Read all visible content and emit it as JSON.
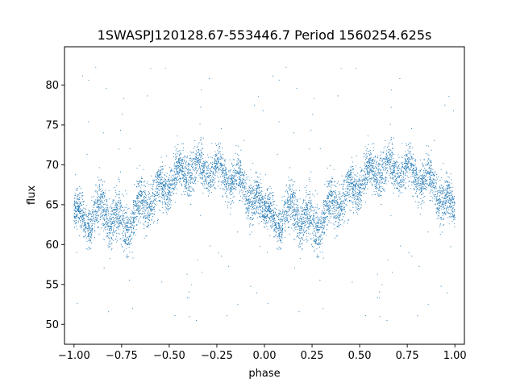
{
  "chart_data": {
    "type": "scatter",
    "title": "1SWASPJ120128.67-553446.7 Period 1560254.625s",
    "xlabel": "phase",
    "ylabel": "flux",
    "xlim": [
      -1.05,
      1.05
    ],
    "ylim": [
      47.5,
      84.8
    ],
    "xticks": [
      -1.0,
      -0.75,
      -0.5,
      -0.25,
      0.0,
      0.25,
      0.5,
      0.75,
      1.0
    ],
    "xtick_labels": [
      "−1.00",
      "−0.75",
      "−0.50",
      "−0.25",
      "0.00",
      "0.25",
      "0.50",
      "0.75",
      "1.00"
    ],
    "yticks": [
      50,
      55,
      60,
      65,
      70,
      75,
      80
    ],
    "ytick_labels": [
      "50",
      "55",
      "60",
      "65",
      "70",
      "75",
      "80"
    ],
    "grid": false,
    "marker_color": "#1f77b4",
    "series": [
      {
        "phase_profile": [
          {
            "x": 0.0,
            "y": 64.0,
            "spread": 2.0
          },
          {
            "x": 0.05,
            "y": 63.0,
            "spread": 2.2
          },
          {
            "x": 0.1,
            "y": 63.5,
            "spread": 2.5
          },
          {
            "x": 0.15,
            "y": 64.5,
            "spread": 2.8
          },
          {
            "x": 0.2,
            "y": 63.5,
            "spread": 3.0
          },
          {
            "x": 0.25,
            "y": 62.5,
            "spread": 3.0
          },
          {
            "x": 0.3,
            "y": 63.0,
            "spread": 3.0
          },
          {
            "x": 0.35,
            "y": 65.0,
            "spread": 2.8
          },
          {
            "x": 0.4,
            "y": 65.5,
            "spread": 2.5
          },
          {
            "x": 0.45,
            "y": 66.5,
            "spread": 2.5
          },
          {
            "x": 0.5,
            "y": 67.5,
            "spread": 2.5
          },
          {
            "x": 0.55,
            "y": 68.5,
            "spread": 2.2
          },
          {
            "x": 0.6,
            "y": 69.5,
            "spread": 2.5
          },
          {
            "x": 0.65,
            "y": 69.5,
            "spread": 2.3
          },
          {
            "x": 0.7,
            "y": 69.5,
            "spread": 2.2
          },
          {
            "x": 0.75,
            "y": 69.0,
            "spread": 2.2
          },
          {
            "x": 0.8,
            "y": 68.5,
            "spread": 2.3
          },
          {
            "x": 0.85,
            "y": 68.0,
            "spread": 2.5
          },
          {
            "x": 0.9,
            "y": 67.0,
            "spread": 2.5
          },
          {
            "x": 0.95,
            "y": 65.5,
            "spread": 2.5
          },
          {
            "x": 1.0,
            "y": 64.0,
            "spread": 2.0
          }
        ],
        "outlier_range": [
          49.5,
          83.0
        ],
        "point_count": 7000
      }
    ]
  }
}
